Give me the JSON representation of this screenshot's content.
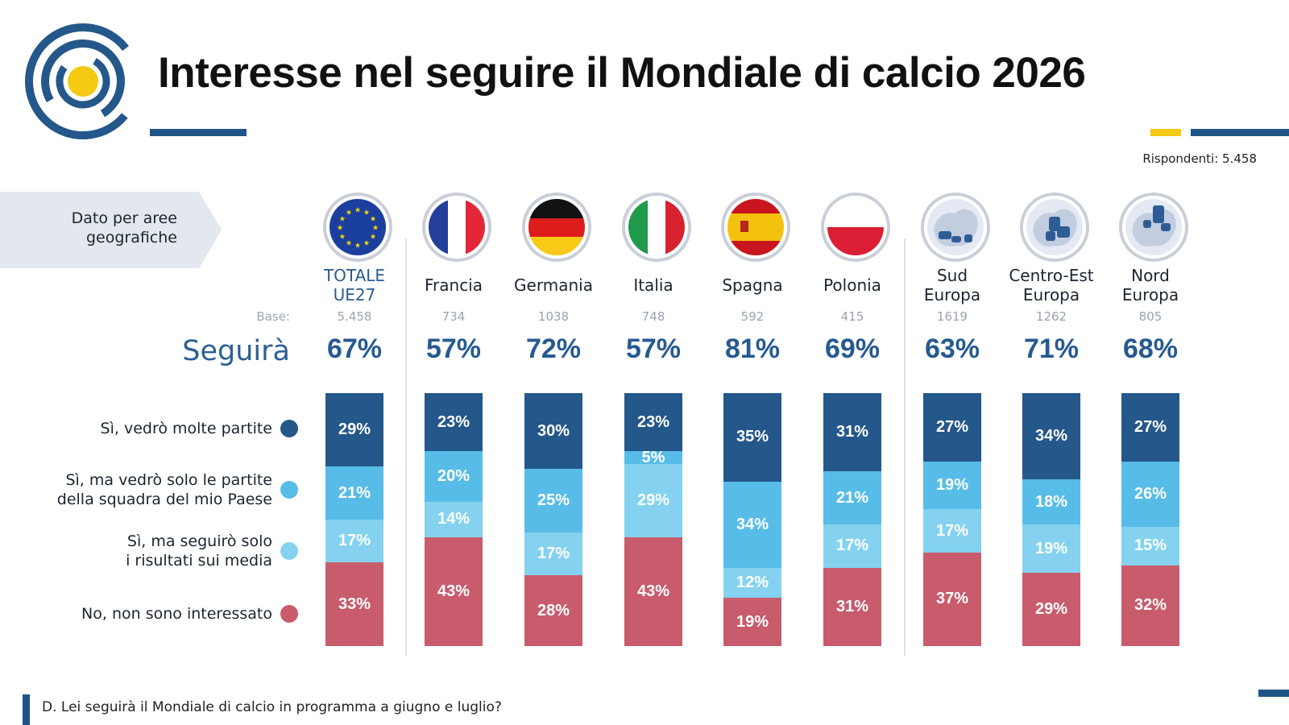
{
  "title": "Interesse nel seguire il Mondiale di calcio 2026",
  "respondents": "Rispondenti: 5.458",
  "section_tag": "Dato per aree\ngeografiche",
  "base_label": "Base:",
  "seguira_label": "Seguirà",
  "question": "D. Lei seguirà il Mondiale di calcio in programma a giugno e luglio?",
  "colors": {
    "dark_blue": "#24578a",
    "mid_blue": "#58bce8",
    "light_blue": "#84d2f0",
    "red": "#c85c6c",
    "title_accent_blue": "#1e5586",
    "accent_yellow": "#f6c913"
  },
  "chart_data": {
    "type": "bar",
    "stacked": true,
    "orientation": "vertical",
    "categories": [
      "TOTALE UE27",
      "Francia",
      "Germania",
      "Italia",
      "Spagna",
      "Polonia",
      "Sud Europa",
      "Centro-Est Europa",
      "Nord Europa"
    ],
    "category_display": [
      "TOTALE\nUE27",
      "Francia",
      "Germania",
      "Italia",
      "Spagna",
      "Polonia",
      "Sud\nEuropa",
      "Centro-Est\nEuropa",
      "Nord\nEuropa"
    ],
    "flag_icons": [
      "eu-flag-icon",
      "france-flag-icon",
      "germany-flag-icon",
      "italy-flag-icon",
      "spain-flag-icon",
      "poland-flag-icon",
      "south-europe-map-icon",
      "central-east-europe-map-icon",
      "north-europe-map-icon"
    ],
    "bases": [
      "5.458",
      "734",
      "1038",
      "748",
      "592",
      "415",
      "1619",
      "1262",
      "805"
    ],
    "seguira": [
      "67%",
      "57%",
      "72%",
      "57%",
      "81%",
      "69%",
      "63%",
      "71%",
      "68%"
    ],
    "series": [
      {
        "name": "Sì, vedrò molte partite",
        "color": "#24578a",
        "values": [
          29,
          23,
          30,
          23,
          35,
          31,
          27,
          34,
          27
        ]
      },
      {
        "name": "Sì, ma vedrò solo le partite\ndella squadra del mio Paese",
        "color": "#58bce8",
        "values": [
          21,
          20,
          25,
          5,
          34,
          21,
          19,
          18,
          26
        ]
      },
      {
        "name": "Sì, ma seguirò solo\ni risultati sui media",
        "color": "#84d2f0",
        "values": [
          17,
          14,
          17,
          29,
          12,
          17,
          17,
          19,
          15
        ]
      },
      {
        "name": "No, non sono interessato",
        "color": "#c85c6c",
        "values": [
          33,
          43,
          28,
          43,
          19,
          31,
          37,
          29,
          32
        ]
      }
    ],
    "ylim": [
      0,
      100
    ]
  }
}
